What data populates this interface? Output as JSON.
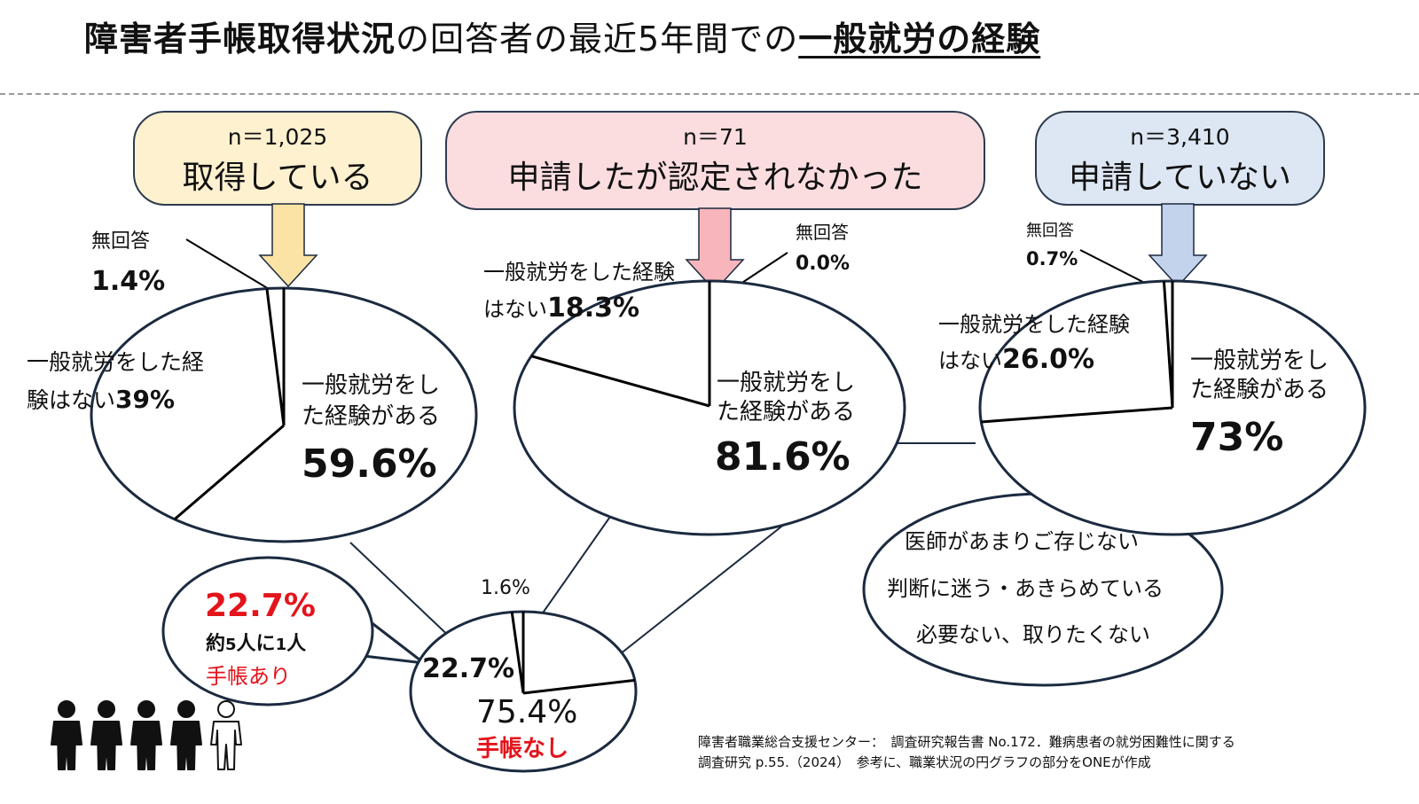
{
  "title": {
    "part1": "障害者手帳取得状況",
    "part2": "の回答者の最近5年間での",
    "part3": "一般就労の経験"
  },
  "groups": [
    {
      "n": "n＝1,025",
      "label": "取得している",
      "color": "#fdf1cf"
    },
    {
      "n": "n＝71",
      "label": "申請したが認定されなかった",
      "color": "#fbdde0"
    },
    {
      "n": "n＝3,410",
      "label": "申請していない",
      "color": "#dde6f3"
    }
  ],
  "chart_data": [
    {
      "type": "pie",
      "group": "取得している",
      "slices": [
        {
          "label": "一般就労をした経験がある",
          "value": 59.6,
          "text": "59.6%"
        },
        {
          "label": "一般就労をした経験はない",
          "value": 39,
          "text": "39%"
        },
        {
          "label": "無回答",
          "value": 1.4,
          "text": "1.4%"
        }
      ]
    },
    {
      "type": "pie",
      "group": "申請したが認定されなかった",
      "slices": [
        {
          "label": "一般就労をした経験がある",
          "value": 81.6,
          "text": "81.6%"
        },
        {
          "label": "一般就労をした経験はない",
          "value": 18.3,
          "text": "18.3%"
        },
        {
          "label": "無回答",
          "value": 0.0,
          "text": "0.0%"
        }
      ]
    },
    {
      "type": "pie",
      "group": "申請していない",
      "slices": [
        {
          "label": "一般就労をした経験がある",
          "value": 73,
          "text": "73%"
        },
        {
          "label": "一般就労をした経験はない",
          "value": 26.0,
          "text": "26.0%"
        },
        {
          "label": "無回答",
          "value": 0.7,
          "text": "0.7%"
        }
      ]
    },
    {
      "type": "pie",
      "group": "手帳取得状況",
      "slices": [
        {
          "label": "手帳あり",
          "value": 22.7,
          "text": "22.7%"
        },
        {
          "label": "手帳なし",
          "value": 75.4,
          "text": "75.4%"
        },
        {
          "label": "",
          "value": 1.6,
          "text": "1.6%"
        }
      ]
    }
  ],
  "labels": {
    "p1_noans_head": "無回答",
    "p1_noans_val": "1.4%",
    "p1_no_line1": "一般就労をした経",
    "p1_no_line2": "験はない",
    "p1_no_val": "39%",
    "p1_yes_line1": "一般就労をし",
    "p1_yes_line2": "た経験がある",
    "p1_yes_val": "59.6%",
    "p2_noans_head": "無回答",
    "p2_noans_val": "0.0%",
    "p2_no_line1": "一般就労をした経験",
    "p2_no_line2": "はない",
    "p2_no_val": "18.3%",
    "p2_yes_line1": "一般就労をし",
    "p2_yes_line2": "た経験がある",
    "p2_yes_val": "81.6%",
    "p3_noans_head": "無回答",
    "p3_noans_val": "0.7%",
    "p3_no_line1": "一般就労をした経験",
    "p3_no_line2": "はない",
    "p3_no_val": "26.0%",
    "p3_yes_line1": "一般就労をし",
    "p3_yes_line2": "た経験がある",
    "p3_yes_val": "73%",
    "p4_small": "1.6%",
    "p4_have": "22.7%",
    "p4_none": "75.4%",
    "p4_none_label": "手帳なし"
  },
  "callout_left": {
    "pct": "22.7%",
    "line2_a": "約",
    "line2_b": "5",
    "line2_c": "人に",
    "line2_d": "1",
    "line2_e": "人",
    "line3": "手帳あり"
  },
  "callout_right": {
    "line1": "医師があまりご存じない",
    "line2": "判断に迷う・あきらめている",
    "line3": "必要ない、取りたくない"
  },
  "source": {
    "line1": "障害者職業総合支援センター：　調査研究報告書 No.172．難病患者の就労困難性に関する",
    "line2": "調査研究 p.55.（2024）　参考に、職業状況の円グラフの部分をONEが作成"
  },
  "colors": {
    "ink": "#1b2a3f",
    "red": "#e3141b",
    "arrow_yellow": "#fbe3a6",
    "arrow_pink": "#f8b5bb",
    "arrow_blue": "#c3d3ec"
  },
  "icons": [
    "person-icon",
    "person-icon",
    "person-icon",
    "person-icon",
    "person-outline-icon"
  ]
}
